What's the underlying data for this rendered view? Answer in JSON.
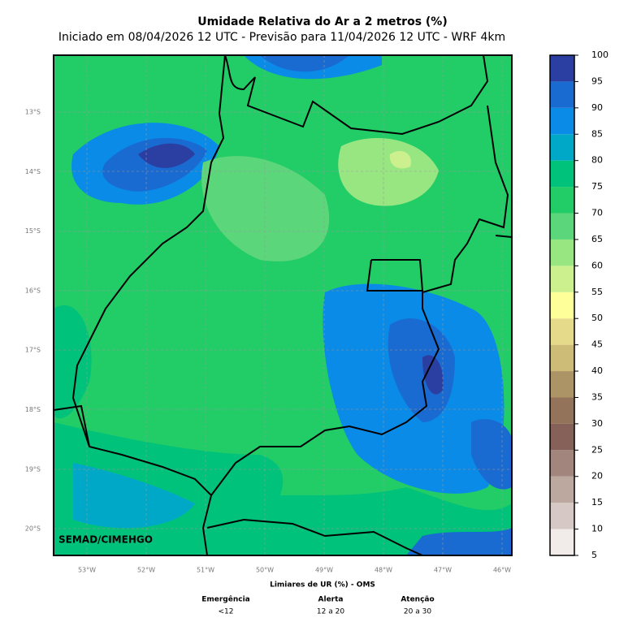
{
  "header": {
    "title": "Umidade Relativa do Ar a 2 metros (%)",
    "subtitle": "Iniciado em 08/04/2026 12 UTC - Previsão para 11/04/2026 12 UTC - WRF 4km"
  },
  "map": {
    "credit": "SEMAD/CIMEHGO",
    "lat_labels": [
      "13°S",
      "14°S",
      "15°S",
      "16°S",
      "17°S",
      "18°S",
      "19°S",
      "20°S"
    ],
    "lon_labels": [
      "53°W",
      "52°W",
      "51°W",
      "50°W",
      "49°W",
      "48°W",
      "47°W",
      "46°W"
    ]
  },
  "colorbar": {
    "ticks": [
      5,
      10,
      15,
      20,
      25,
      30,
      35,
      40,
      45,
      50,
      55,
      60,
      65,
      70,
      75,
      80,
      85,
      90,
      95,
      100
    ],
    "colors": [
      "#f1ecea",
      "#d6c9c5",
      "#bca89f",
      "#a2867e",
      "#86615a",
      "#93735a",
      "#ad9466",
      "#cdbb78",
      "#e5d98a",
      "#ffff99",
      "#cdf08f",
      "#98e682",
      "#5bd67a",
      "#22cc66",
      "#00c27a",
      "#00a8c8",
      "#0a8be8",
      "#1a6bd1",
      "#2b3fa3"
    ]
  },
  "thresholds": {
    "title": "Limiares de UR (%) - OMS",
    "items": [
      {
        "name": "Emergência",
        "range": "<12"
      },
      {
        "name": "Alerta",
        "range": "12 a 20"
      },
      {
        "name": "Atenção",
        "range": "20 a 30"
      }
    ]
  }
}
